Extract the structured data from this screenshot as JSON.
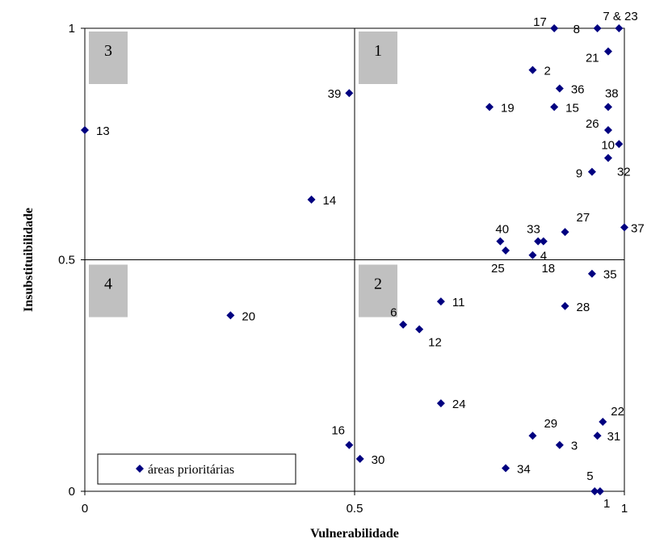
{
  "chart_data": {
    "type": "scatter",
    "xlabel": "Vulnerabilidade",
    "ylabel": "Insubstituibilidade",
    "xlim": [
      0,
      1
    ],
    "ylim": [
      0,
      1
    ],
    "x_ticks": [
      "0",
      "0.5",
      "1"
    ],
    "y_ticks": [
      "0",
      "0.5",
      "1"
    ],
    "grid": "quadrant lines at 0.5",
    "legend_position": "bottom-left",
    "marker_color": "#000080",
    "quadrant_box_color": "#c0c0c0",
    "quadrants": [
      {
        "label": "1",
        "position": "top-right"
      },
      {
        "label": "2",
        "position": "bottom-right"
      },
      {
        "label": "3",
        "position": "top-left"
      },
      {
        "label": "4",
        "position": "bottom-left"
      }
    ],
    "series": [
      {
        "name": "áreas prioritárias",
        "points": [
          {
            "label": "1",
            "x": 0.955,
            "y": 0.0
          },
          {
            "label": "2",
            "x": 0.83,
            "y": 0.91
          },
          {
            "label": "3",
            "x": 0.88,
            "y": 0.1
          },
          {
            "label": "4",
            "x": 0.85,
            "y": 0.54
          },
          {
            "label": "5",
            "x": 0.945,
            "y": 0.0
          },
          {
            "label": "6",
            "x": 0.59,
            "y": 0.36
          },
          {
            "label": "7 & 23",
            "x": 0.99,
            "y": 1.0
          },
          {
            "label": "8",
            "x": 0.95,
            "y": 1.0
          },
          {
            "label": "9",
            "x": 0.94,
            "y": 0.69
          },
          {
            "label": "10",
            "x": 0.99,
            "y": 0.75
          },
          {
            "label": "11",
            "x": 0.66,
            "y": 0.41
          },
          {
            "label": "12",
            "x": 0.62,
            "y": 0.35
          },
          {
            "label": "13",
            "x": 0.0,
            "y": 0.78
          },
          {
            "label": "14",
            "x": 0.42,
            "y": 0.63
          },
          {
            "label": "15",
            "x": 0.87,
            "y": 0.83
          },
          {
            "label": "16",
            "x": 0.49,
            "y": 0.1
          },
          {
            "label": "17",
            "x": 0.87,
            "y": 1.0
          },
          {
            "label": "18",
            "x": 0.83,
            "y": 0.51
          },
          {
            "label": "19",
            "x": 0.75,
            "y": 0.83
          },
          {
            "label": "20",
            "x": 0.27,
            "y": 0.38
          },
          {
            "label": "21",
            "x": 0.97,
            "y": 0.95
          },
          {
            "label": "22",
            "x": 0.96,
            "y": 0.15
          },
          {
            "label": "24",
            "x": 0.66,
            "y": 0.19
          },
          {
            "label": "25",
            "x": 0.78,
            "y": 0.52
          },
          {
            "label": "26",
            "x": 0.97,
            "y": 0.78
          },
          {
            "label": "27",
            "x": 0.89,
            "y": 0.56
          },
          {
            "label": "28",
            "x": 0.89,
            "y": 0.4
          },
          {
            "label": "29",
            "x": 0.83,
            "y": 0.12
          },
          {
            "label": "30",
            "x": 0.51,
            "y": 0.07
          },
          {
            "label": "31",
            "x": 0.95,
            "y": 0.12
          },
          {
            "label": "32",
            "x": 0.97,
            "y": 0.72
          },
          {
            "label": "33",
            "x": 0.84,
            "y": 0.54
          },
          {
            "label": "34",
            "x": 0.78,
            "y": 0.05
          },
          {
            "label": "35",
            "x": 0.94,
            "y": 0.47
          },
          {
            "label": "36",
            "x": 0.88,
            "y": 0.87
          },
          {
            "label": "37",
            "x": 1.0,
            "y": 0.57
          },
          {
            "label": "38",
            "x": 0.97,
            "y": 0.83
          },
          {
            "label": "39",
            "x": 0.49,
            "y": 0.86
          },
          {
            "label": "40",
            "x": 0.77,
            "y": 0.54
          }
        ]
      }
    ]
  }
}
